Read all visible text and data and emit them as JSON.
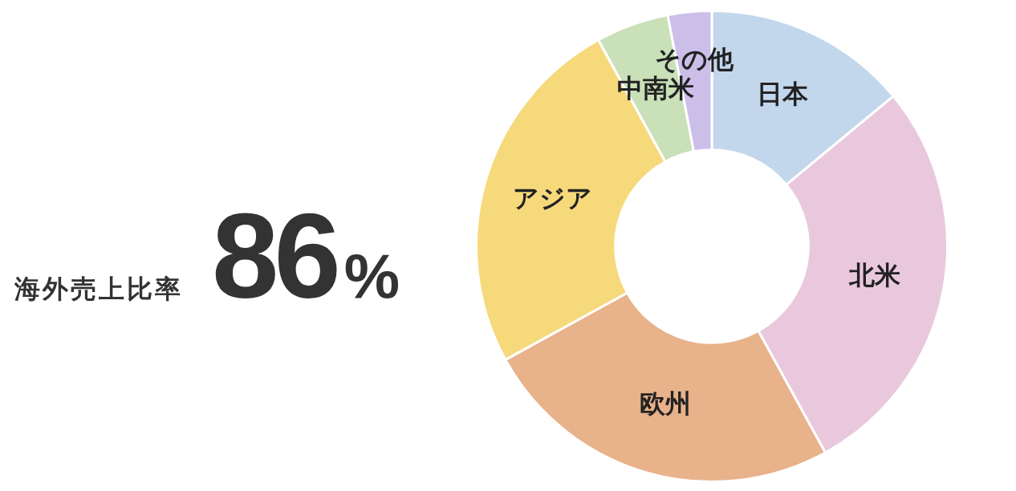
{
  "chart_data": [
    {
      "type": "other",
      "title": "海外売上比率",
      "annotations": [
        "86%"
      ]
    },
    {
      "type": "donut",
      "categories": [
        "日本",
        "北米",
        "欧州",
        "アジア",
        "中南米",
        "その他"
      ],
      "values": [
        14,
        28,
        25,
        25,
        5,
        3
      ],
      "colors": [
        "#c3d7ec",
        "#e9c8dd",
        "#e8b28a",
        "#f6d97b",
        "#c9e0b8",
        "#cbbfea"
      ]
    }
  ]
}
